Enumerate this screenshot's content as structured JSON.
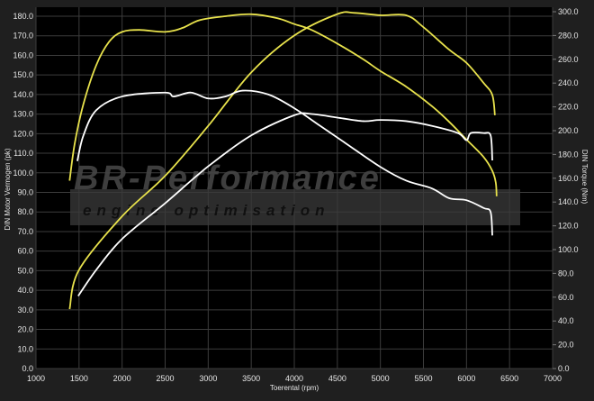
{
  "chart_data": {
    "type": "line",
    "xlabel": "Toerental (rpm)",
    "ylabel_left": "DIN Motor Vermogen (pk)",
    "ylabel_right": "DIN Torque (Nm)",
    "xlim": [
      1000,
      7000
    ],
    "ylim_left": [
      0,
      180
    ],
    "ylim_right": [
      0,
      300
    ],
    "x_ticks": [
      1000,
      1500,
      2000,
      2500,
      3000,
      3500,
      4000,
      4500,
      5000,
      5500,
      6000,
      6500,
      7000
    ],
    "y_left_ticks": [
      "0.0",
      "10.0",
      "20.0",
      "30.0",
      "40.0",
      "50.0",
      "60.0",
      "70.0",
      "80.0",
      "90.0",
      "100.0",
      "110.0",
      "120.0",
      "130.0",
      "140.0",
      "150.0",
      "160.0",
      "170.0",
      "180.0"
    ],
    "y_right_ticks": [
      "0.0",
      "20.0",
      "40.0",
      "60.0",
      "80.0",
      "100.0",
      "120.0",
      "140.0",
      "160.0",
      "180.0",
      "200.0",
      "220.0",
      "240.0",
      "260.0",
      "280.0",
      "300.0"
    ],
    "grid": true,
    "series": [
      {
        "axis": "left",
        "color": "#e8e24c",
        "x": [
          1390,
          1450,
          1550,
          1700,
          1850,
          2000,
          2200,
          2500,
          2700,
          2900,
          3200,
          3500,
          3800,
          4000,
          4200,
          4500,
          4800,
          5000,
          5300,
          5600,
          5800,
          6000,
          6200,
          6300,
          6340,
          6350
        ],
        "y": [
          96,
          115,
          135,
          155,
          167,
          172,
          173,
          172,
          174,
          178,
          180,
          181,
          179,
          176,
          173,
          166,
          158,
          152,
          144,
          134,
          126,
          117,
          108,
          101,
          95,
          88
        ]
      },
      {
        "axis": "right",
        "color": "#e8e24c",
        "x": [
          1390,
          1500,
          2000,
          2500,
          3000,
          3500,
          4000,
          4500,
          4700,
          5000,
          5300,
          5500,
          5800,
          6000,
          6200,
          6300,
          6330
        ],
        "y": [
          50,
          83,
          128,
          162,
          204,
          249,
          280,
          298,
          299,
          297,
          297,
          287,
          268,
          257,
          240,
          230,
          213
        ]
      },
      {
        "axis": "left",
        "color": "#ffffff",
        "x": [
          1480,
          1550,
          1700,
          2000,
          2500,
          2600,
          2800,
          3000,
          3200,
          3400,
          3700,
          4000,
          4300,
          4600,
          5000,
          5300,
          5600,
          5800,
          6000,
          6200,
          6280,
          6300
        ],
        "y": [
          106,
          119,
          132,
          139,
          141,
          139,
          141,
          138,
          139,
          142,
          140,
          133,
          124,
          115,
          103,
          96,
          92,
          87,
          86,
          82,
          80,
          68
        ]
      },
      {
        "axis": "right",
        "color": "#ffffff",
        "x": [
          1490,
          1700,
          2000,
          2500,
          3000,
          3500,
          4000,
          4200,
          4500,
          4800,
          5000,
          5300,
          5600,
          5900,
          6000,
          6050,
          6200,
          6280,
          6300
        ],
        "y": [
          61,
          83,
          109,
          139,
          170,
          196,
          213,
          214,
          211,
          208,
          209,
          208,
          204,
          198,
          192,
          198,
          198,
          196,
          175
        ]
      }
    ]
  },
  "watermark": {
    "brand": "BR-Performance",
    "tagline": "engine optimisation"
  }
}
